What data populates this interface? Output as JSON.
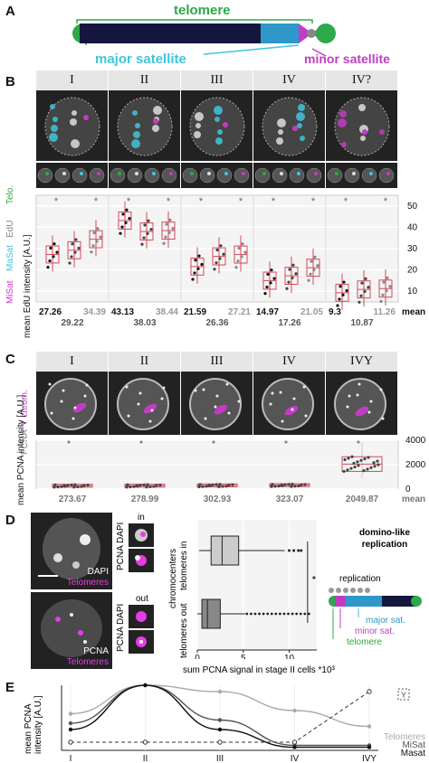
{
  "panelA": {
    "label": "A",
    "telomere": "telomere",
    "major": "major satellite",
    "minor": "minor satellite"
  },
  "panelB": {
    "label": "B",
    "stages": [
      "I",
      "II",
      "III",
      "IV",
      "IV?"
    ],
    "channels": {
      "telo": "Telo.",
      "edu": "EdU",
      "masat": "MaSat",
      "misat": "MiSat"
    },
    "ylabel": "mean EdU intensity [A.U.]",
    "yticks": [
      "50",
      "40",
      "30",
      "20",
      "10"
    ],
    "mean_label": "mean",
    "means_top": [
      "27.26",
      "34.39",
      "43.13",
      "38.44",
      "21.59",
      "27.21",
      "14.97",
      "21.05",
      "9.3",
      "11.26"
    ],
    "means_bottom": [
      "29.22",
      "38.03",
      "26.36",
      "17.26",
      "10.87"
    ],
    "star": "*"
  },
  "panelC": {
    "label": "C",
    "stages": [
      "I",
      "II",
      "III",
      "IV",
      "IVY"
    ],
    "channels": {
      "ychrom": "Y chrom.",
      "pcna": "PCNA"
    },
    "ylabel": "mean PCNA intensity [A.U.]",
    "yticks": [
      "4000",
      "2000",
      "0"
    ],
    "means": [
      "273.67",
      "278.99",
      "302.93",
      "323.07",
      "2049.87"
    ],
    "mean_label": "mean"
  },
  "panelD": {
    "label": "D",
    "dapi": "DAPI",
    "telomeres": "Telomeres",
    "pcna": "PCNA",
    "in": "in",
    "out": "out",
    "ylabel": "chromocenters",
    "cat_in": "telomeres in",
    "cat_out": "telomeres out",
    "xticks": [
      "0",
      "5",
      "10"
    ],
    "xlabel": "sum PCNA signal in stage II cells *10³",
    "title": "domino-like replication",
    "replication": "replication",
    "major": "major sat.",
    "minor": "minor sat.",
    "telomere": "telomere"
  },
  "panelE": {
    "label": "E",
    "ylabel": "mean PCNA intensity [A.U.]",
    "xticks": [
      "I",
      "II",
      "III",
      "IV",
      "IVY"
    ],
    "legend": [
      "Telomeres",
      "MiSat",
      "Masat"
    ],
    "y_marker": "Y",
    "colors": {
      "telomeres": "#aaaaaa",
      "misat": "#555555",
      "masat": "#111111"
    }
  },
  "chart_data": [
    {
      "type": "box",
      "ylabel": "mean EdU intensity [A.U.]",
      "ylim": [
        5,
        55
      ],
      "categories": [
        "I",
        "II",
        "III",
        "IV",
        "IV?"
      ],
      "series": [
        {
          "values": [
            27.26,
            43.13,
            21.59,
            14.97,
            9.3
          ]
        },
        {
          "values": [
            29.22,
            38.03,
            26.36,
            17.26,
            10.87
          ]
        },
        {
          "values": [
            34.39,
            38.44,
            27.21,
            21.05,
            11.26
          ]
        }
      ]
    },
    {
      "type": "box",
      "ylabel": "mean PCNA intensity [A.U.]",
      "ylim": [
        0,
        4000
      ],
      "categories": [
        "I",
        "II",
        "III",
        "IV",
        "IVY"
      ],
      "values": [
        273.67,
        278.99,
        302.93,
        323.07,
        2049.87
      ]
    },
    {
      "type": "box",
      "xlabel": "sum PCNA signal in stage II cells *10³",
      "categories": [
        "telomeres in",
        "telomeres out"
      ],
      "xlim": [
        0,
        12
      ],
      "median": [
        2.7,
        1.1
      ]
    },
    {
      "type": "line",
      "ylabel": "mean PCNA intensity [A.U.]",
      "x": [
        "I",
        "II",
        "III",
        "IV",
        "IVY"
      ],
      "series": [
        {
          "name": "Telomeres",
          "values": [
            0.55,
            1.0,
            0.9,
            0.6,
            0.35
          ]
        },
        {
          "name": "MiSat",
          "values": [
            0.4,
            1.0,
            0.45,
            0.05,
            0.05
          ]
        },
        {
          "name": "Masat",
          "values": [
            0.3,
            1.0,
            0.3,
            0.02,
            0.02
          ]
        }
      ]
    }
  ]
}
